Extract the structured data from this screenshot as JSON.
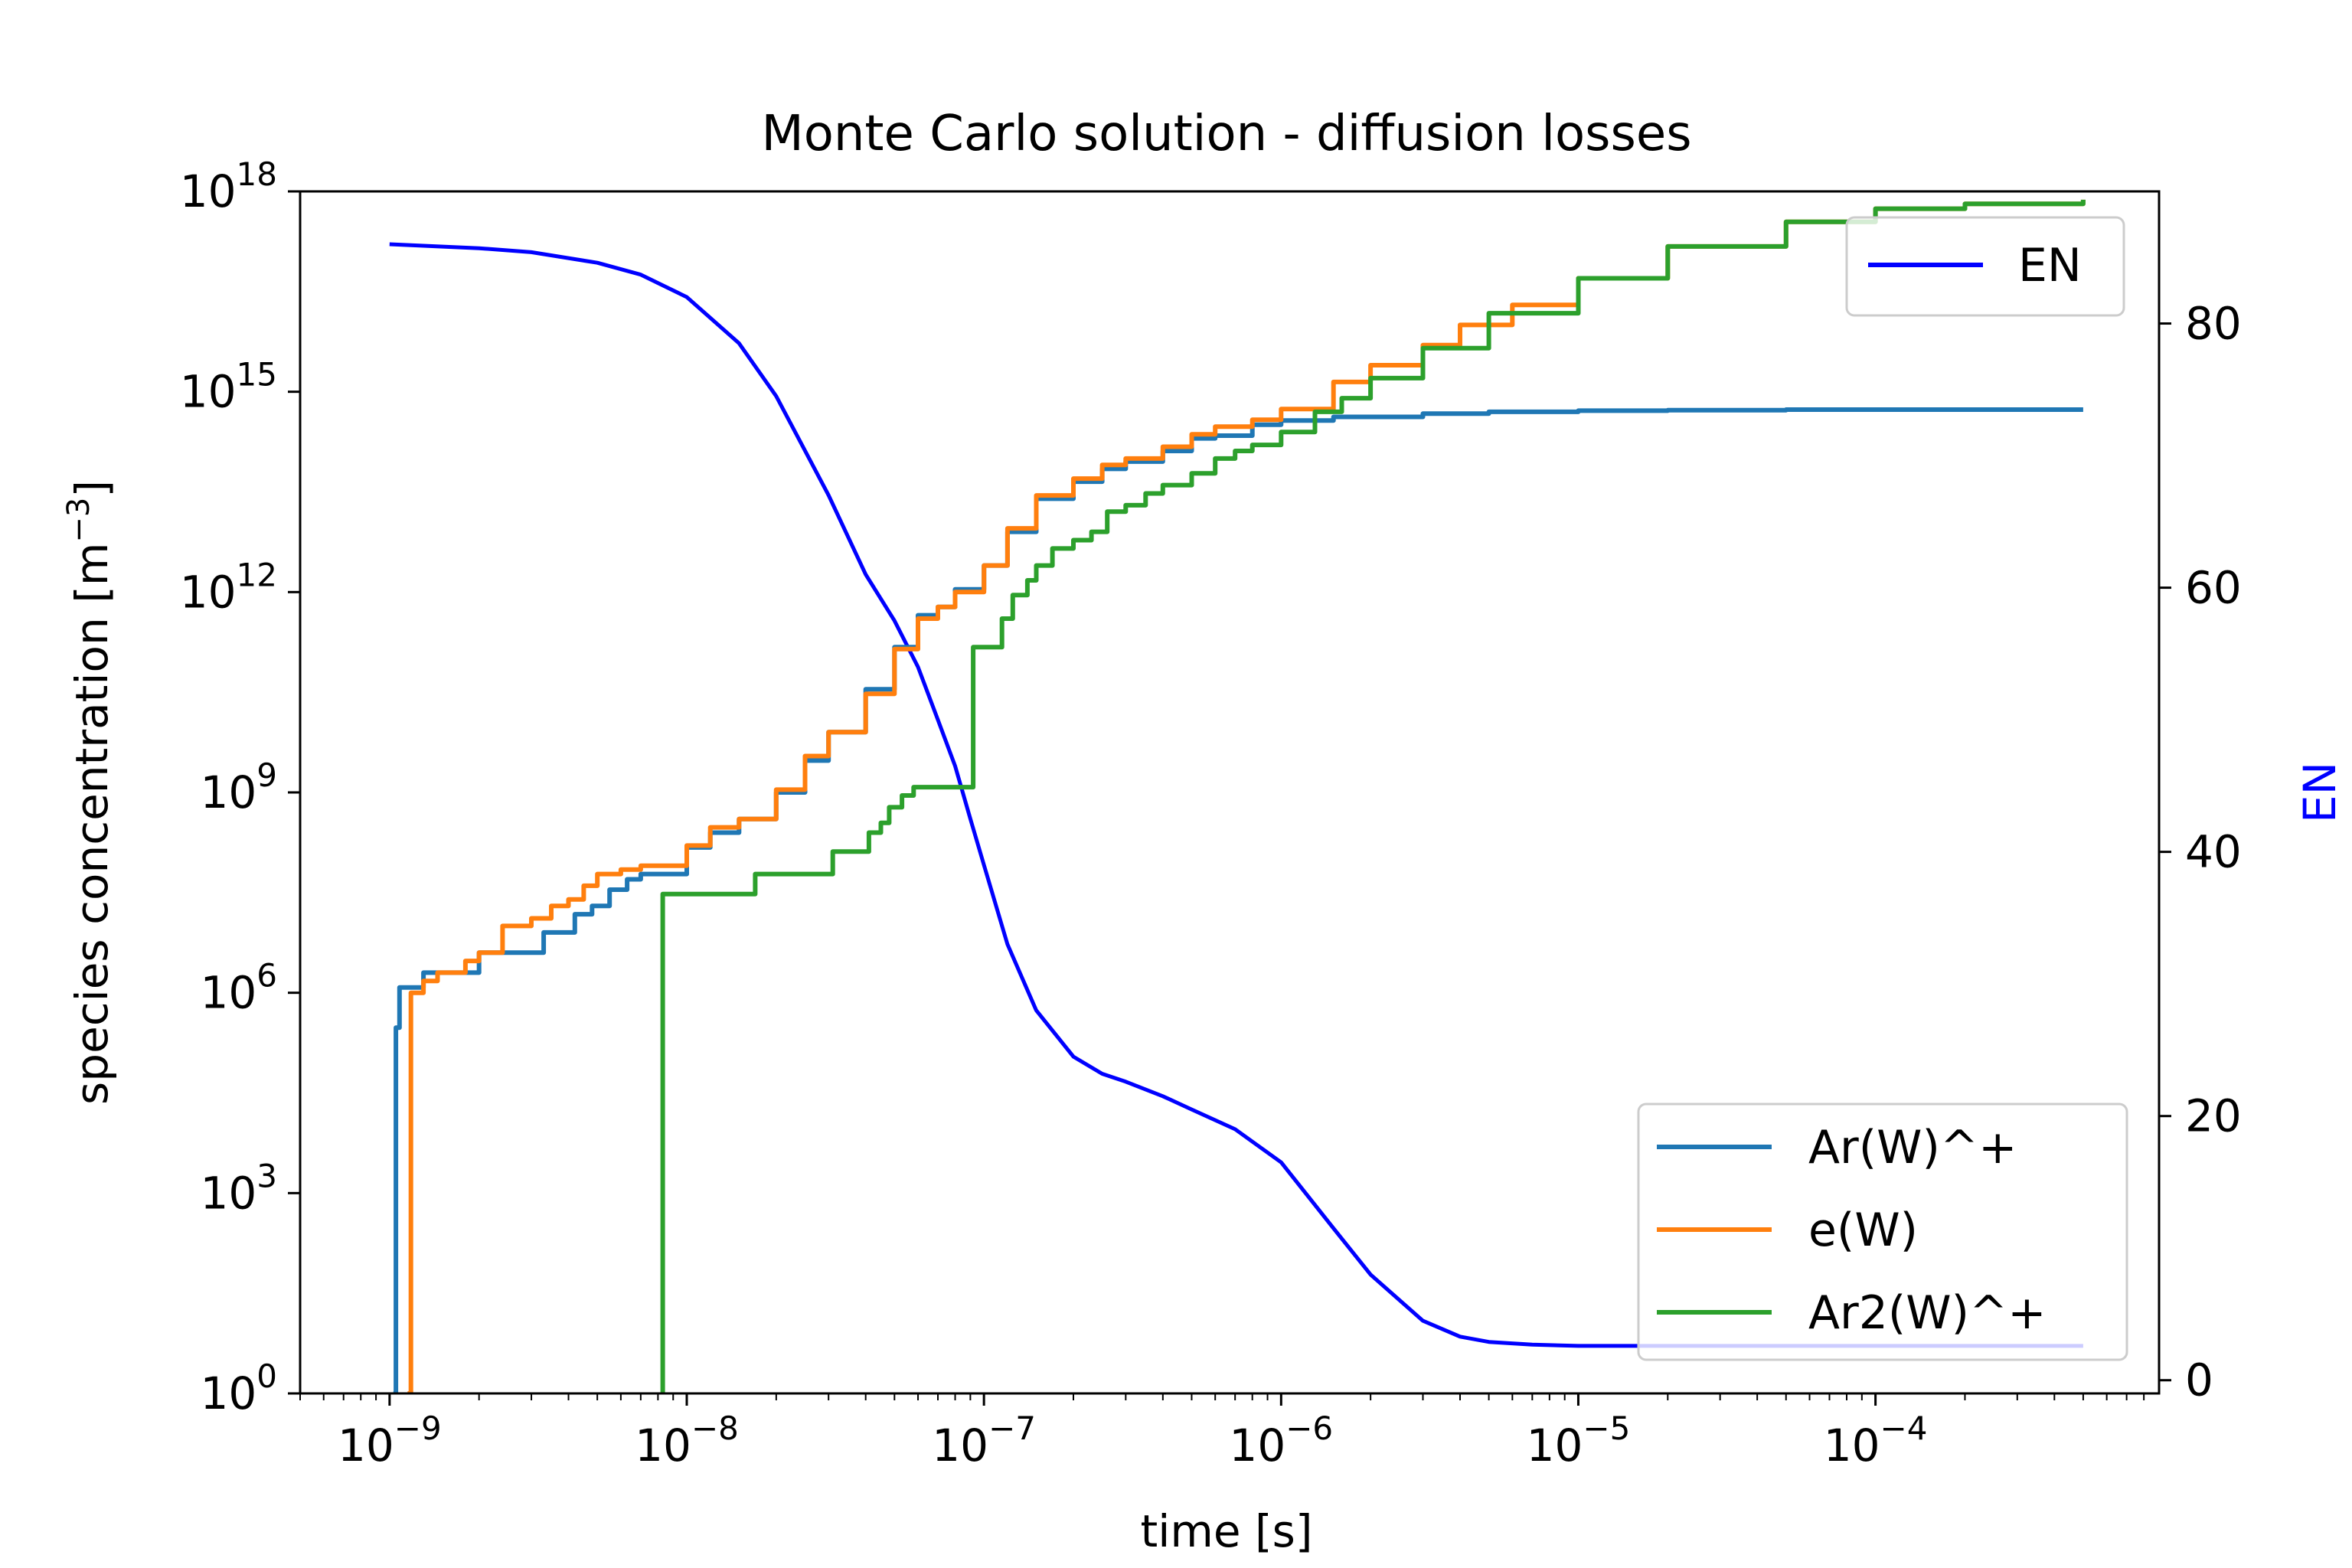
{
  "chart_data": {
    "type": "line",
    "title": "Monte Carlo solution - diffusion losses",
    "xlabel": "time [s]",
    "ylabel": "species concentration [m",
    "ylabel_sup": "−3",
    "ylabel_end": "]",
    "y2label": "EN",
    "x_scale": "log",
    "y_scale": "log",
    "xlim": [
      5e-10,
      0.0009
    ],
    "ylim": [
      1,
      1e+18
    ],
    "y2lim": [
      -1,
      90
    ],
    "x_ticks": [
      {
        "base": "10",
        "exp": "−9",
        "value": 1e-09
      },
      {
        "base": "10",
        "exp": "−8",
        "value": 1e-08
      },
      {
        "base": "10",
        "exp": "−7",
        "value": 1e-07
      },
      {
        "base": "10",
        "exp": "−6",
        "value": 1e-06
      },
      {
        "base": "10",
        "exp": "−5",
        "value": 1e-05
      },
      {
        "base": "10",
        "exp": "−4",
        "value": 0.0001
      }
    ],
    "y_ticks": [
      {
        "base": "10",
        "exp": "0",
        "value": 1
      },
      {
        "base": "10",
        "exp": "3",
        "value": 1000.0
      },
      {
        "base": "10",
        "exp": "6",
        "value": 1000000.0
      },
      {
        "base": "10",
        "exp": "9",
        "value": 1000000000.0
      },
      {
        "base": "10",
        "exp": "12",
        "value": 1000000000000.0
      },
      {
        "base": "10",
        "exp": "15",
        "value": 1000000000000000.0
      },
      {
        "base": "10",
        "exp": "18",
        "value": 1e+18
      }
    ],
    "y2_ticks": [
      {
        "label": "0",
        "value": 0
      },
      {
        "label": "20",
        "value": 20
      },
      {
        "label": "40",
        "value": 40
      },
      {
        "label": "60",
        "value": 60
      },
      {
        "label": "80",
        "value": 80
      }
    ],
    "legend_left": {
      "placement": "upper right",
      "entries": [
        {
          "name": "EN",
          "color": "#0000ff"
        }
      ]
    },
    "legend_right": {
      "placement": "lower right",
      "entries": [
        {
          "name": "Ar(W)^+",
          "color": "#1f77b4"
        },
        {
          "name": "e(W)",
          "color": "#ff7f0e"
        },
        {
          "name": "Ar2(W)^+",
          "color": "#2ca02c"
        }
      ]
    },
    "series": [
      {
        "name": "Ar(W)^+",
        "axis": "left",
        "color": "#1f77b4",
        "step": true,
        "x": [
          1.03e-09,
          1.05e-09,
          1.08e-09,
          1.2e-09,
          1.3e-09,
          1.6e-09,
          2e-09,
          2.6e-09,
          3.3e-09,
          3.8e-09,
          4.2e-09,
          4.8e-09,
          5.5e-09,
          6.3e-09,
          7e-09,
          8e-09,
          1e-08,
          1.2e-08,
          1.5e-08,
          2e-08,
          2.5e-08,
          3e-08,
          4e-08,
          5e-08,
          6e-08,
          7e-08,
          8e-08,
          1e-07,
          1.2e-07,
          1.5e-07,
          2e-07,
          2.5e-07,
          3e-07,
          4e-07,
          5e-07,
          6e-07,
          8e-07,
          1e-06,
          1.5e-06,
          2e-06,
          3e-06,
          5e-06,
          1e-05,
          2e-05,
          5e-05,
          0.0001,
          0.0005
        ],
        "y": [
          1,
          300000.0,
          1200000.0,
          1200000.0,
          2000000.0,
          2000000.0,
          4000000.0,
          4000000.0,
          8000000.0,
          8000000.0,
          15000000.0,
          20000000.0,
          35000000.0,
          50000000.0,
          60000000.0,
          60000000.0,
          150000000.0,
          250000000.0,
          400000000.0,
          1000000000.0,
          3000000000.0,
          8000000000.0,
          35000000000.0,
          150000000000.0,
          450000000000.0,
          600000000000.0,
          1100000000000.0,
          2500000000000.0,
          8000000000000.0,
          25000000000000.0,
          45000000000000.0,
          70000000000000.0,
          90000000000000.0,
          130000000000000.0,
          200000000000000.0,
          220000000000000.0,
          320000000000000.0,
          370000000000000.0,
          420000000000000.0,
          420000000000000.0,
          470000000000000.0,
          500000000000000.0,
          520000000000000.0,
          530000000000000.0,
          540000000000000.0,
          540000000000000.0,
          540000000000000.0
        ]
      },
      {
        "name": "e(W)",
        "axis": "left",
        "color": "#ff7f0e",
        "step": true,
        "x": [
          1.15e-09,
          1.18e-09,
          1.3e-09,
          1.45e-09,
          1.6e-09,
          1.8e-09,
          2e-09,
          2.4e-09,
          3e-09,
          3.5e-09,
          4e-09,
          4.5e-09,
          5e-09,
          6e-09,
          7e-09,
          8e-09,
          1e-08,
          1.2e-08,
          1.5e-08,
          2e-08,
          2.5e-08,
          3e-08,
          4e-08,
          5e-08,
          6e-08,
          7e-08,
          8e-08,
          1e-07,
          1.2e-07,
          1.5e-07,
          2e-07,
          2.5e-07,
          3e-07,
          4e-07,
          5e-07,
          6e-07,
          8e-07,
          1e-06,
          1.5e-06,
          2e-06,
          3e-06,
          4e-06,
          6e-06,
          1e-05,
          2e-05,
          5e-05,
          0.0001,
          0.0002,
          0.0005
        ],
        "y": [
          1,
          1000000.0,
          1500000.0,
          2000000.0,
          2000000.0,
          3000000.0,
          4000000.0,
          10000000.0,
          13000000.0,
          20000000.0,
          25000000.0,
          40000000.0,
          60000000.0,
          70000000.0,
          80000000.0,
          80000000.0,
          160000000.0,
          300000000.0,
          400000000.0,
          1100000000.0,
          3500000000.0,
          8000000000.0,
          30000000000.0,
          140000000000.0,
          400000000000.0,
          600000000000.0,
          1000000000000.0,
          2500000000000.0,
          9000000000000.0,
          28000000000000.0,
          50000000000000.0,
          80000000000000.0,
          100000000000000.0,
          150000000000000.0,
          230000000000000.0,
          300000000000000.0,
          380000000000000.0,
          550000000000000.0,
          1400000000000000.0,
          2500000000000000.0,
          5000000000000000.0,
          1e+16,
          2e+16,
          5e+16,
          1.5e+17,
          3.5e+17,
          5.5e+17,
          6.5e+17,
          7.5e+17
        ]
      },
      {
        "name": "Ar2(W)^+",
        "axis": "left",
        "color": "#2ca02c",
        "step": true,
        "x": [
          8.2e-09,
          8.3e-09,
          1.7e-08,
          3.1e-08,
          4.1e-08,
          4.5e-08,
          4.8e-08,
          5.3e-08,
          5.8e-08,
          9e-08,
          9.2e-08,
          1.15e-07,
          1.25e-07,
          1.4e-07,
          1.5e-07,
          1.7e-07,
          2e-07,
          2.3e-07,
          2.6e-07,
          3e-07,
          3.5e-07,
          4e-07,
          5e-07,
          6e-07,
          7e-07,
          8e-07,
          1e-06,
          1.3e-06,
          1.6e-06,
          2e-06,
          3e-06,
          5e-06,
          1e-05,
          2e-05,
          5e-05,
          0.0001,
          0.0002,
          0.0005
        ],
        "y": [
          1,
          30000000.0,
          60000000.0,
          130000000.0,
          250000000.0,
          350000000.0,
          600000000.0,
          900000000.0,
          1200000000.0,
          1200000000.0,
          150000000000.0,
          400000000000.0,
          900000000000.0,
          1500000000000.0,
          2500000000000.0,
          4500000000000.0,
          6000000000000.0,
          8000000000000.0,
          16000000000000.0,
          20000000000000.0,
          30000000000000.0,
          40000000000000.0,
          60000000000000.0,
          100000000000000.0,
          130000000000000.0,
          160000000000000.0,
          250000000000000.0,
          500000000000000.0,
          800000000000000.0,
          1600000000000000.0,
          4500000000000000.0,
          1.5e+16,
          5e+16,
          1.5e+17,
          3.5e+17,
          5.5e+17,
          6.5e+17,
          7.5e+17
        ]
      },
      {
        "name": "EN",
        "axis": "right",
        "color": "#0000ff",
        "step": false,
        "x": [
          1e-09,
          2e-09,
          3e-09,
          5e-09,
          7e-09,
          1e-08,
          1.5e-08,
          2e-08,
          3e-08,
          4e-08,
          5e-08,
          6e-08,
          7e-08,
          8e-08,
          9e-08,
          1e-07,
          1.2e-07,
          1.5e-07,
          2e-07,
          2.5e-07,
          3e-07,
          4e-07,
          5e-07,
          7e-07,
          1e-06,
          1.5e-06,
          2e-06,
          3e-06,
          4e-06,
          5e-06,
          7e-06,
          1e-05,
          2e-05,
          0.0001,
          0.0005
        ],
        "y": [
          86,
          85.7,
          85.4,
          84.6,
          83.7,
          82,
          78.5,
          74.5,
          67,
          61,
          57.5,
          54,
          50,
          46.5,
          42.5,
          39,
          33,
          28,
          24.5,
          23.2,
          22.6,
          21.5,
          20.5,
          19,
          16.5,
          11.5,
          8,
          4.5,
          3.3,
          2.9,
          2.7,
          2.6,
          2.6,
          2.6,
          2.6
        ]
      }
    ]
  }
}
